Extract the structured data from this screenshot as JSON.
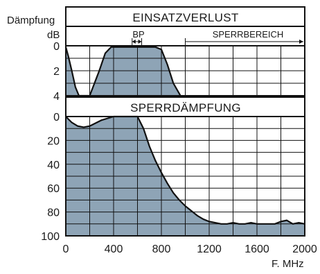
{
  "colors": {
    "fill": "#8ea4b6",
    "line": "#111111",
    "grid": "#111111",
    "background": "#ffffff"
  },
  "chart_data": [
    {
      "type": "area",
      "title": "EINSATZVERLUST",
      "xlabel": "F. MHz",
      "ylabel": "Dämpfung",
      "yunit": "dB",
      "xlim": [
        0,
        2000
      ],
      "ylim": [
        0,
        4
      ],
      "y_inverted": true,
      "grid": true,
      "yticks": [
        "0",
        "2",
        "4"
      ],
      "annotations": {
        "passband": "BP",
        "stopband": "SPERRBEREICH"
      },
      "x": [
        0,
        20,
        50,
        80,
        110,
        200,
        280,
        330,
        380,
        750,
        800,
        850,
        900,
        960
      ],
      "y": [
        0.1,
        0.8,
        2.0,
        3.3,
        4.0,
        4.0,
        2.0,
        0.6,
        0.1,
        0.1,
        0.3,
        1.5,
        3.0,
        4.0
      ]
    },
    {
      "type": "area",
      "title": "SPERRDÄMPFUNG",
      "xlabel": "F. MHz",
      "xlim": [
        0,
        2000
      ],
      "ylim": [
        0,
        100
      ],
      "y_inverted": true,
      "grid": true,
      "xticks": [
        "0",
        "400",
        "800",
        "1200",
        "1600",
        "2000"
      ],
      "yticks": [
        "0",
        "20",
        "40",
        "60",
        "80",
        "100"
      ],
      "x": [
        0,
        50,
        100,
        150,
        200,
        300,
        400,
        450,
        500,
        600,
        650,
        700,
        750,
        800,
        850,
        900,
        950,
        1000,
        1050,
        1100,
        1150,
        1200,
        1250,
        1300,
        1350,
        1400,
        1450,
        1500,
        1550,
        1600,
        1650,
        1700,
        1750,
        1800,
        1850,
        1900,
        1950,
        2000
      ],
      "y": [
        0,
        5,
        8,
        9,
        8,
        3,
        0,
        0,
        0,
        0,
        10,
        25,
        37,
        47,
        56,
        64,
        70,
        75,
        79,
        83,
        86,
        88,
        89,
        90,
        90,
        89,
        90,
        90,
        89,
        90,
        90,
        90,
        90,
        88,
        87,
        90,
        89,
        90
      ]
    }
  ]
}
